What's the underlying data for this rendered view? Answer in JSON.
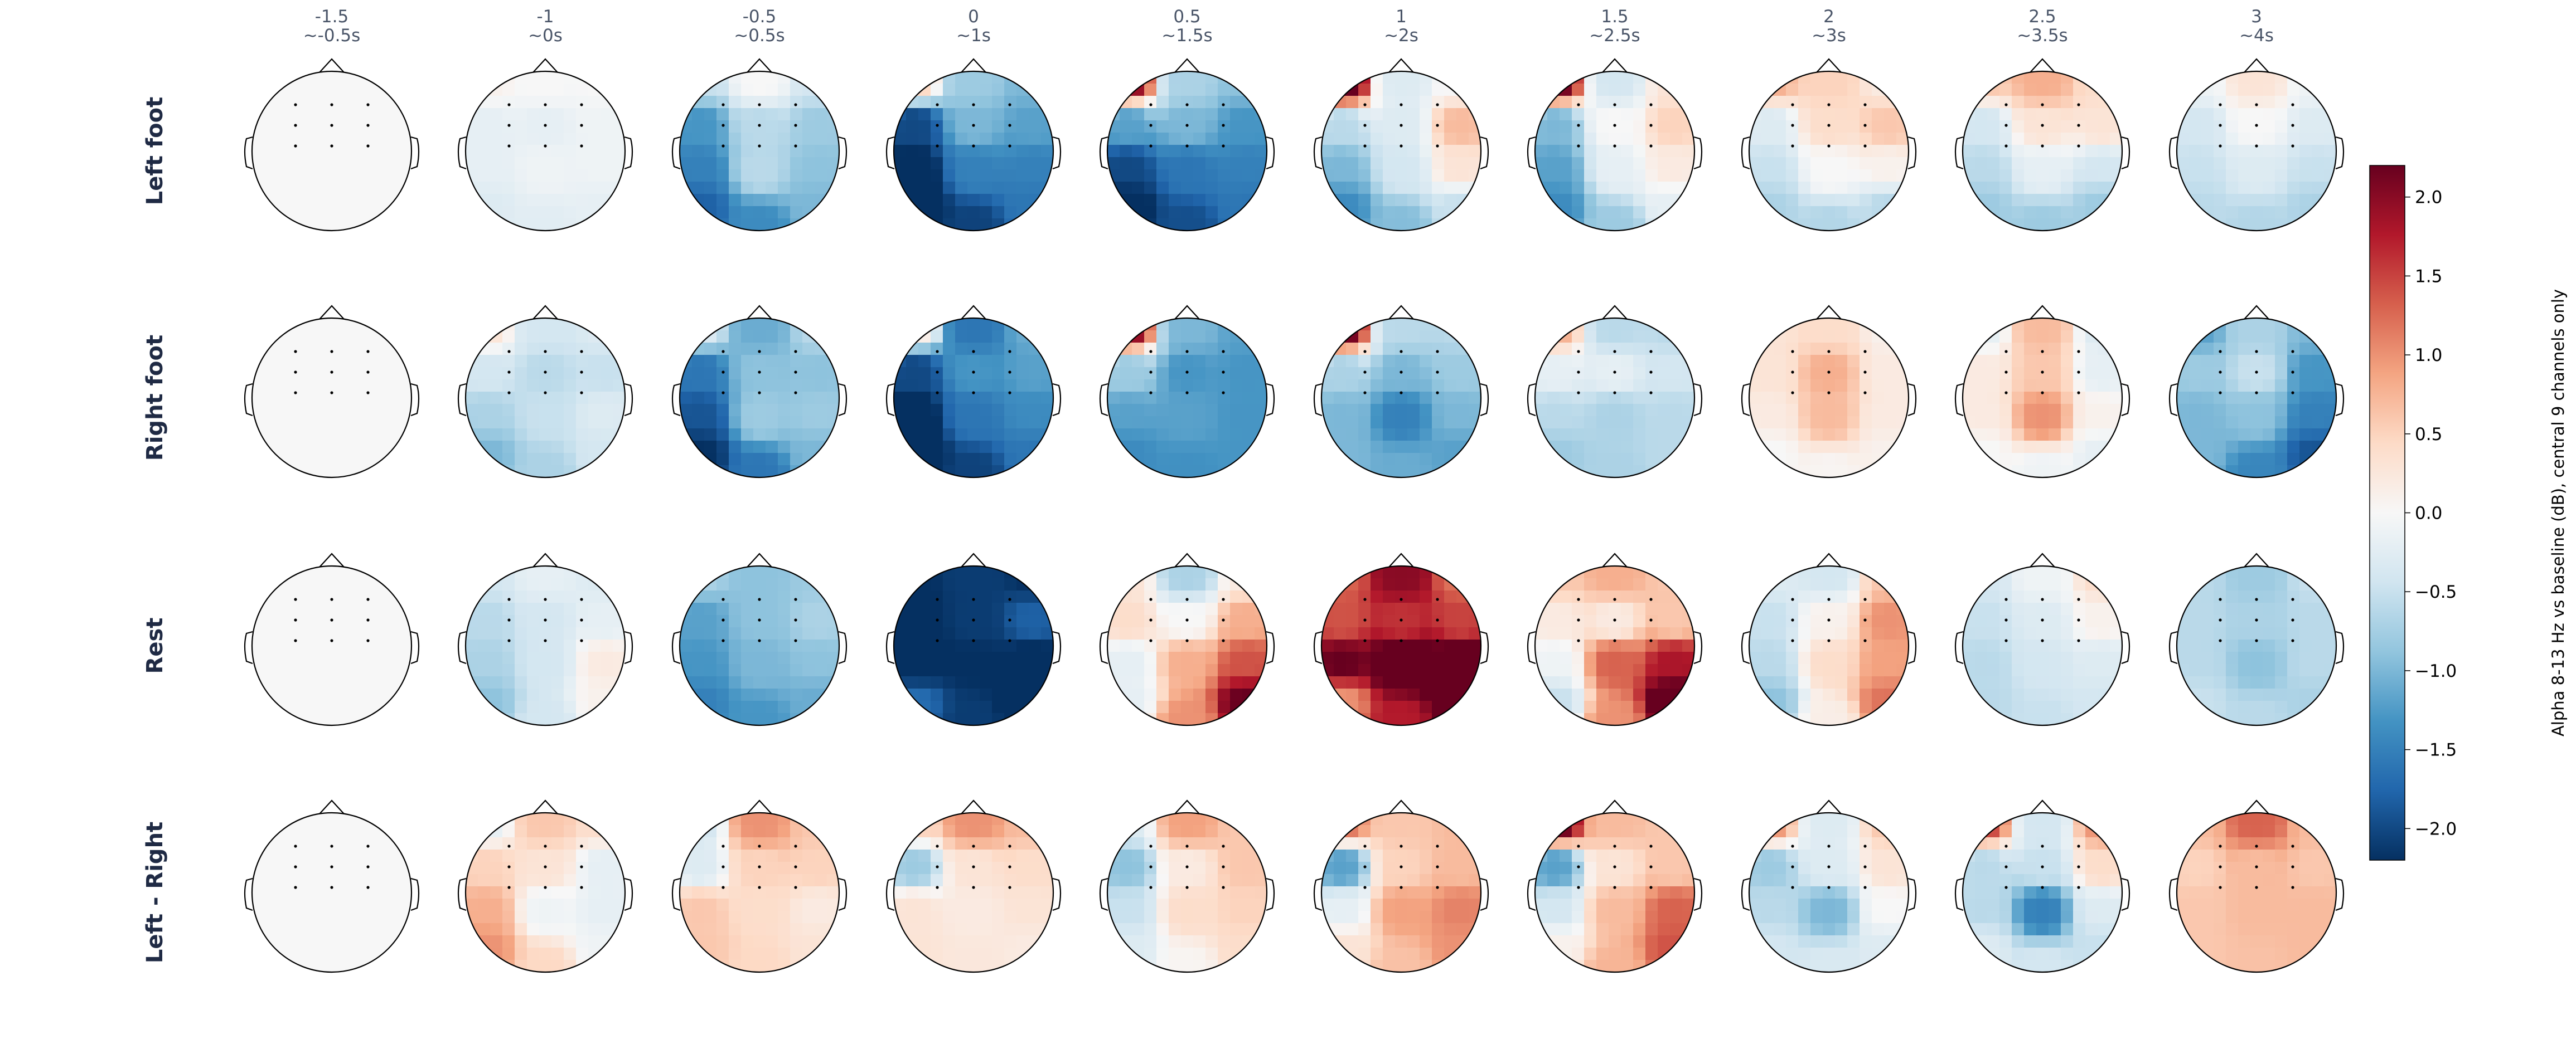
{
  "chart_data": {
    "type": "heatmap",
    "subtype": "topomap-grid",
    "columns": [
      {
        "time": "-1.5",
        "approx": "~-0.5s"
      },
      {
        "time": "-1",
        "approx": "~0s"
      },
      {
        "time": "-0.5",
        "approx": "~0.5s"
      },
      {
        "time": "0",
        "approx": "~1s"
      },
      {
        "time": "0.5",
        "approx": "~1.5s"
      },
      {
        "time": "1",
        "approx": "~2s"
      },
      {
        "time": "1.5",
        "approx": "~2.5s"
      },
      {
        "time": "2",
        "approx": "~3s"
      },
      {
        "time": "2.5",
        "approx": "~3.5s"
      },
      {
        "time": "3",
        "approx": "~4s"
      }
    ],
    "rows": [
      "Left foot",
      "Right foot",
      "Rest",
      "Left - Right"
    ],
    "channel_grid_note": "values per map are a 3x3 grid of central channels (rows: frontal-central, central, centro-parietal; cols: left, mid, right) plus lower-left and lower-right scalp edge estimates [LL, LR]",
    "maps": [
      [
        {
          "grid": [
            [
              0,
              0,
              0
            ],
            [
              0,
              0,
              0
            ],
            [
              0,
              0,
              0
            ]
          ],
          "edge": [
            0,
            0
          ]
        },
        {
          "grid": [
            [
              0.1,
              0,
              0
            ],
            [
              -0.2,
              -0.2,
              -0.1
            ],
            [
              -0.2,
              -0.1,
              -0.1
            ]
          ],
          "edge": [
            -0.3,
            -0.2
          ]
        },
        {
          "grid": [
            [
              -0.5,
              0,
              -0.4
            ],
            [
              -1.3,
              -0.6,
              -0.8
            ],
            [
              -1.5,
              -0.6,
              -0.9
            ]
          ],
          "edge": [
            -1.8,
            -1.0
          ]
        },
        {
          "grid": [
            [
              0.5,
              -0.8,
              -1.0
            ],
            [
              -2.0,
              -1.0,
              -1.2
            ],
            [
              -2.3,
              -1.5,
              -1.5
            ]
          ],
          "edge": [
            -2.5,
            -1.6
          ]
        },
        {
          "grid": [
            [
              2.0,
              -0.7,
              -0.9
            ],
            [
              -1.2,
              -1.0,
              -1.3
            ],
            [
              -2.0,
              -1.6,
              -1.5
            ]
          ],
          "edge": [
            -2.3,
            -1.6
          ]
        },
        {
          "grid": [
            [
              2.5,
              -0.3,
              0
            ],
            [
              -0.6,
              -0.3,
              0.7
            ],
            [
              -1.0,
              -0.4,
              0.3
            ]
          ],
          "edge": [
            -1.4,
            -0.5
          ]
        },
        {
          "grid": [
            [
              2.2,
              -0.4,
              0.3
            ],
            [
              -1.0,
              0,
              0.5
            ],
            [
              -1.2,
              -0.2,
              0.2
            ]
          ],
          "edge": [
            -1.4,
            -0.2
          ]
        },
        {
          "grid": [
            [
              0.8,
              0.5,
              0.2
            ],
            [
              -0.3,
              0.4,
              0.6
            ],
            [
              -0.5,
              0,
              0.1
            ]
          ],
          "edge": [
            -0.7,
            -0.6
          ]
        },
        {
          "grid": [
            [
              0.6,
              0.8,
              0.4
            ],
            [
              -0.4,
              0.3,
              0.3
            ],
            [
              -0.6,
              -0.2,
              -0.4
            ]
          ],
          "edge": [
            -0.8,
            -0.8
          ]
        },
        {
          "grid": [
            [
              -0.1,
              0.3,
              -0.1
            ],
            [
              -0.4,
              0,
              -0.3
            ],
            [
              -0.5,
              -0.3,
              -0.5
            ]
          ],
          "edge": [
            -0.6,
            -0.7
          ]
        }
      ],
      [
        {
          "grid": [
            [
              0,
              0,
              0
            ],
            [
              0,
              0,
              0
            ],
            [
              0,
              0,
              0
            ]
          ],
          "edge": [
            0,
            0
          ]
        },
        {
          "grid": [
            [
              0.3,
              -0.4,
              -0.3
            ],
            [
              -0.4,
              -0.6,
              -0.5
            ],
            [
              -0.7,
              -0.5,
              -0.3
            ]
          ],
          "edge": [
            -1.0,
            -0.4
          ]
        },
        {
          "grid": [
            [
              -0.3,
              -1.1,
              -0.6
            ],
            [
              -1.6,
              -0.9,
              -0.9
            ],
            [
              -1.9,
              -0.8,
              -0.8
            ]
          ],
          "edge": [
            -2.2,
            -1.0
          ]
        },
        {
          "grid": [
            [
              0.2,
              -1.6,
              -1.1
            ],
            [
              -2.0,
              -1.3,
              -1.2
            ],
            [
              -2.3,
              -1.6,
              -1.4
            ]
          ],
          "edge": [
            -2.5,
            -1.6
          ]
        },
        {
          "grid": [
            [
              2.0,
              -1.0,
              -1.2
            ],
            [
              -0.8,
              -1.3,
              -1.3
            ],
            [
              -1.2,
              -1.2,
              -1.3
            ]
          ],
          "edge": [
            -1.4,
            -1.3
          ]
        },
        {
          "grid": [
            [
              2.2,
              -0.6,
              -0.6
            ],
            [
              -0.7,
              -1.0,
              -0.8
            ],
            [
              -1.0,
              -1.5,
              -1.0
            ]
          ],
          "edge": [
            -1.0,
            -1.2
          ]
        },
        {
          "grid": [
            [
              0.8,
              -0.6,
              -0.6
            ],
            [
              -0.2,
              -0.2,
              -0.4
            ],
            [
              -0.6,
              -0.7,
              -0.6
            ]
          ],
          "edge": [
            -0.8,
            -0.6
          ]
        },
        {
          "grid": [
            [
              0.3,
              0.4,
              0.1
            ],
            [
              0.3,
              0.8,
              0.2
            ],
            [
              0.2,
              0.7,
              0.2
            ]
          ],
          "edge": [
            0,
            0.1
          ]
        },
        {
          "grid": [
            [
              -0.2,
              0.7,
              -0.3
            ],
            [
              0.2,
              0.6,
              -0.2
            ],
            [
              0.2,
              1.0,
              0.1
            ]
          ],
          "edge": [
            0,
            -0.2
          ]
        },
        {
          "grid": [
            [
              -1.2,
              -0.7,
              -1.0
            ],
            [
              -0.8,
              -0.5,
              -1.3
            ],
            [
              -1.0,
              -0.9,
              -1.5
            ]
          ],
          "edge": [
            -1.0,
            -1.9
          ]
        }
      ],
      [
        {
          "grid": [
            [
              0,
              0,
              0
            ],
            [
              0,
              0,
              0
            ],
            [
              0,
              0,
              0
            ]
          ],
          "edge": [
            0,
            0
          ]
        },
        {
          "grid": [
            [
              -0.4,
              -0.2,
              -0.3
            ],
            [
              -0.6,
              -0.4,
              -0.2
            ],
            [
              -0.7,
              -0.4,
              0.2
            ]
          ],
          "edge": [
            -0.9,
            0.1
          ]
        },
        {
          "grid": [
            [
              -0.7,
              -0.9,
              -0.8
            ],
            [
              -1.2,
              -0.9,
              -0.7
            ],
            [
              -1.3,
              -1.0,
              -0.9
            ]
          ],
          "edge": [
            -1.5,
            -1.1
          ]
        },
        {
          "grid": [
            [
              -2.2,
              -2.1,
              -2.2
            ],
            [
              -2.3,
              -2.1,
              -1.8
            ],
            [
              -2.4,
              -2.2,
              -2.3
            ]
          ],
          "edge": [
            -1.7,
            -2.5
          ]
        },
        {
          "grid": [
            [
              0.3,
              -0.7,
              0.2
            ],
            [
              0.4,
              0,
              0.8
            ],
            [
              -0.2,
              0.8,
              1.4
            ]
          ],
          "edge": [
            -0.2,
            2.2
          ]
        },
        {
          "grid": [
            [
              1.3,
              2.0,
              1.2
            ],
            [
              1.4,
              1.6,
              1.5
            ],
            [
              2.2,
              2.6,
              2.5
            ]
          ],
          "edge": [
            1.0,
            2.5
          ]
        },
        {
          "grid": [
            [
              0.6,
              0.8,
              0.6
            ],
            [
              0.2,
              0.2,
              0.6
            ],
            [
              -0.1,
              1.3,
              1.8
            ]
          ],
          "edge": [
            -0.5,
            2.5
          ]
        },
        {
          "grid": [
            [
              -0.3,
              -0.4,
              0.6
            ],
            [
              -0.5,
              0.1,
              1.0
            ],
            [
              -0.6,
              0.4,
              0.9
            ]
          ],
          "edge": [
            -0.9,
            1.2
          ]
        },
        {
          "grid": [
            [
              -0.4,
              -0.1,
              0.4
            ],
            [
              -0.5,
              -0.3,
              0.1
            ],
            [
              -0.6,
              -0.4,
              -0.3
            ]
          ],
          "edge": [
            -0.6,
            -0.4
          ]
        },
        {
          "grid": [
            [
              -0.6,
              -0.8,
              -0.5
            ],
            [
              -0.6,
              -0.7,
              -0.6
            ],
            [
              -0.6,
              -0.9,
              -0.6
            ]
          ],
          "edge": [
            -0.5,
            -0.7
          ]
        }
      ],
      [
        {
          "grid": [
            [
              0,
              0,
              0
            ],
            [
              0,
              0,
              0
            ],
            [
              0,
              0,
              0
            ]
          ],
          "edge": [
            0,
            0
          ]
        },
        {
          "grid": [
            [
              -0.2,
              0.6,
              0.4
            ],
            [
              0.5,
              0.3,
              -0.2
            ],
            [
              0.8,
              -0.1,
              -0.2
            ]
          ],
          "edge": [
            1.0,
            -0.1
          ]
        },
        {
          "grid": [
            [
              -0.4,
              1.0,
              0.6
            ],
            [
              -0.3,
              0.5,
              0.5
            ],
            [
              0.6,
              0.4,
              0.2
            ]
          ],
          "edge": [
            0.6,
            0.3
          ]
        },
        {
          "grid": [
            [
              0.5,
              1.0,
              0.7
            ],
            [
              -0.8,
              0.3,
              0.4
            ],
            [
              0.3,
              0.2,
              0.3
            ]
          ],
          "edge": [
            0.3,
            0.2
          ]
        },
        {
          "grid": [
            [
              -0.3,
              0.9,
              0.6
            ],
            [
              -0.9,
              0.2,
              0.6
            ],
            [
              -0.5,
              0.4,
              0.5
            ]
          ],
          "edge": [
            -0.3,
            0.4
          ]
        },
        {
          "grid": [
            [
              1.2,
              0.6,
              0.7
            ],
            [
              -1.2,
              0.5,
              0.7
            ],
            [
              -0.2,
              0.9,
              1.1
            ]
          ],
          "edge": [
            0.3,
            1.0
          ]
        },
        {
          "grid": [
            [
              2.2,
              0.7,
              0.6
            ],
            [
              -1.2,
              0.3,
              0.6
            ],
            [
              -0.4,
              0.7,
              1.3
            ]
          ],
          "edge": [
            0.1,
            1.4
          ]
        },
        {
          "grid": [
            [
              1.0,
              -0.3,
              0.6
            ],
            [
              -0.8,
              -0.3,
              0.3
            ],
            [
              -0.6,
              -1.0,
              0.0
            ]
          ],
          "edge": [
            -0.4,
            -0.3
          ]
        },
        {
          "grid": [
            [
              1.5,
              -0.4,
              1.0
            ],
            [
              -0.6,
              -0.5,
              0.4
            ],
            [
              -0.6,
              -1.5,
              -0.3
            ]
          ],
          "edge": [
            -0.3,
            -0.5
          ]
        },
        {
          "grid": [
            [
              0.7,
              1.3,
              0.7
            ],
            [
              0.5,
              0.7,
              0.6
            ],
            [
              0.6,
              0.7,
              0.7
            ]
          ],
          "edge": [
            0.6,
            0.7
          ]
        }
      ]
    ],
    "colorbar": {
      "label": "Alpha 8-13 Hz vs baseline (dB), central 9 channels only",
      "vmin": -2.2,
      "vmax": 2.2,
      "ticks": [
        "2.0",
        "1.5",
        "1.0",
        "0.5",
        "0.0",
        "−0.5",
        "−1.0",
        "−1.5",
        "−2.0"
      ],
      "tick_values": [
        2.0,
        1.5,
        1.0,
        0.5,
        0.0,
        -0.5,
        -1.0,
        -1.5,
        -2.0
      ],
      "colormap": "RdBu_r",
      "colors": [
        "#053061",
        "#2166ac",
        "#4393c3",
        "#92c5de",
        "#d1e5f0",
        "#f7f7f7",
        "#fddbc7",
        "#f4a582",
        "#d6604d",
        "#b2182b",
        "#67001f"
      ]
    }
  }
}
